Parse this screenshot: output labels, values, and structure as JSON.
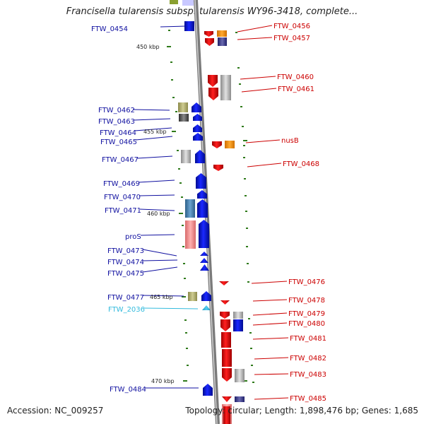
{
  "title": "Francisella tularensis subsp. tularensis WY96-3418, complete...",
  "accession": "Accession: NC_009257",
  "stats": "Topology: circular; Length: 1,898,476 bp; Genes: 1,685",
  "colors": {
    "forward_label": "#1010a0",
    "reverse_label": "#cc0000",
    "rna_label": "#33bbdd",
    "forward_gene": "#0a12f0",
    "reverse_gene": "#f00000",
    "rna_gene": "#33bbee",
    "backbone": "#888888",
    "tick": "#2f7a1a"
  },
  "kbp_ticks": [
    "450 kbp",
    "455 kbp",
    "460 kbp",
    "465 kbp",
    "470 kbp"
  ],
  "forward_labels": [
    "FTW_0454",
    "FTW_0462",
    "FTW_0463",
    "FTW_0464",
    "FTW_0465",
    "FTW_0467",
    "FTW_0469",
    "FTW_0470",
    "FTW_0471",
    "proS",
    "FTW_0473",
    "FTW_0474",
    "FTW_0475",
    "FTW_0477",
    "FTW_2036",
    "FTW_0484"
  ],
  "reverse_labels": [
    "FTW_0456",
    "FTW_0457",
    "FTW_0460",
    "FTW_0461",
    "nusB",
    "FTW_0468",
    "FTW_0476",
    "FTW_0478",
    "FTW_0479",
    "FTW_0480",
    "FTW_0481",
    "FTW_0482",
    "FTW_0483",
    "FTW_0485"
  ]
}
